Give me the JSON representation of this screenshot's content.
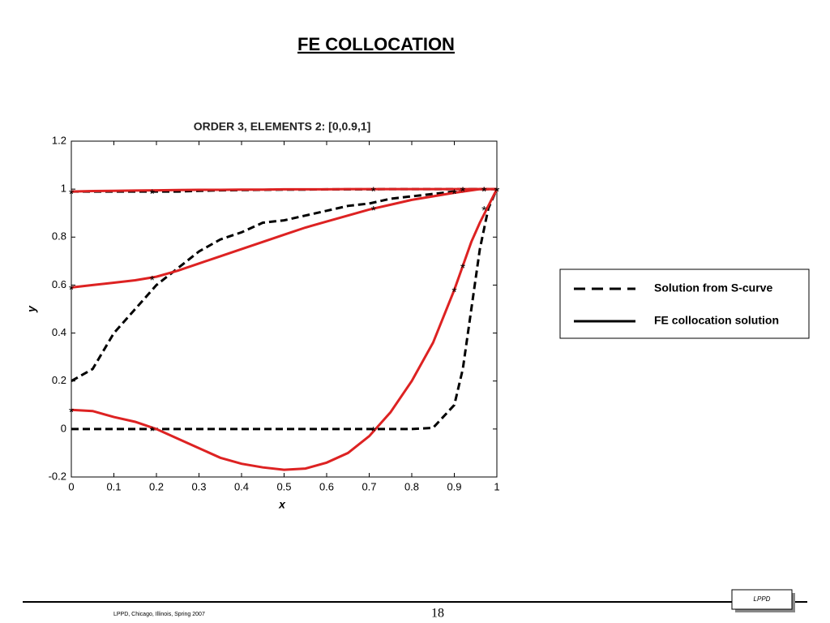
{
  "slide": {
    "title": "FE COLLOCATION",
    "footer": {
      "left": "LPPD, Chicago, Illinois, Spring 2007",
      "page": "18",
      "logo": "LPPD"
    },
    "legend": [
      {
        "label": "Solution from S-curve",
        "dashed": true,
        "color": "#000000"
      },
      {
        "label": "FE collocation solution",
        "dashed": false,
        "color": "#000000"
      }
    ]
  },
  "chart_data": {
    "type": "line",
    "title": "ORDER 3, ELEMENTS 2: [0,0.9,1]",
    "xlabel": "x",
    "ylabel": "y",
    "xlim": [
      0,
      1
    ],
    "ylim": [
      -0.2,
      1.2
    ],
    "xticks": [
      0,
      0.1,
      0.2,
      0.3,
      0.4,
      0.5,
      0.6,
      0.7,
      0.8,
      0.9,
      1
    ],
    "yticks": [
      -0.2,
      0,
      0.2,
      0.4,
      0.6,
      0.8,
      1,
      1.2
    ],
    "x": [
      0,
      0.05,
      0.1,
      0.15,
      0.2,
      0.25,
      0.3,
      0.35,
      0.4,
      0.45,
      0.5,
      0.55,
      0.6,
      0.65,
      0.7,
      0.75,
      0.8,
      0.85,
      0.9,
      0.92,
      0.94,
      0.96,
      0.98,
      1
    ],
    "series": [
      {
        "color": "#000000",
        "dashed": true,
        "values": [
          0.99,
          0.99,
          0.99,
          0.99,
          0.99,
          0.99,
          0.993,
          0.995,
          0.996,
          0.997,
          0.998,
          0.998,
          0.999,
          0.999,
          0.999,
          1,
          1,
          1,
          1,
          1,
          1,
          1,
          1,
          1
        ]
      },
      {
        "color": "#000000",
        "dashed": true,
        "values": [
          0.2,
          0.25,
          0.4,
          0.5,
          0.6,
          0.67,
          0.74,
          0.79,
          0.82,
          0.86,
          0.87,
          0.89,
          0.91,
          0.93,
          0.94,
          0.96,
          0.97,
          0.98,
          0.99,
          0.99,
          1,
          1,
          1,
          1
        ]
      },
      {
        "color": "#000000",
        "dashed": true,
        "values": [
          0,
          0,
          0,
          0,
          0,
          0,
          0,
          0,
          0,
          0,
          0,
          0,
          0,
          0,
          0,
          0,
          0,
          0.005,
          0.1,
          0.25,
          0.5,
          0.75,
          0.92,
          1
        ]
      },
      {
        "color": "#dd2222",
        "dashed": false,
        "values": [
          0.99,
          0.992,
          0.993,
          0.994,
          0.995,
          0.996,
          0.997,
          0.997,
          0.998,
          0.998,
          0.999,
          0.999,
          0.999,
          1,
          1,
          1,
          1,
          1,
          1,
          1,
          1,
          1,
          1,
          1
        ]
      },
      {
        "color": "#dd2222",
        "dashed": false,
        "values": [
          0.59,
          0.6,
          0.61,
          0.62,
          0.635,
          0.66,
          0.69,
          0.72,
          0.75,
          0.78,
          0.81,
          0.84,
          0.865,
          0.89,
          0.915,
          0.935,
          0.955,
          0.97,
          0.985,
          0.99,
          0.995,
          1,
          1,
          1
        ]
      },
      {
        "color": "#dd2222",
        "dashed": false,
        "values": [
          0.08,
          0.075,
          0.05,
          0.03,
          0,
          -0.04,
          -0.08,
          -0.12,
          -0.145,
          -0.16,
          -0.17,
          -0.165,
          -0.14,
          -0.1,
          -0.03,
          0.07,
          0.2,
          0.36,
          0.58,
          0.68,
          0.78,
          0.86,
          0.93,
          1
        ]
      }
    ],
    "markers": {
      "symbol": "*",
      "color": "#000000",
      "x": [
        0,
        0.19,
        0.71,
        0.9,
        0.92,
        0.97,
        1
      ],
      "series": [
        {
          "values": [
            0.99,
            0.99,
            1,
            0.99,
            1,
            1,
            1
          ]
        },
        {
          "values": [
            0.59,
            0.63,
            0.92,
            0.99,
            1,
            1,
            1
          ]
        },
        {
          "values": [
            0.08,
            0,
            0,
            0.58,
            0.68,
            0.92,
            1
          ]
        }
      ]
    }
  }
}
